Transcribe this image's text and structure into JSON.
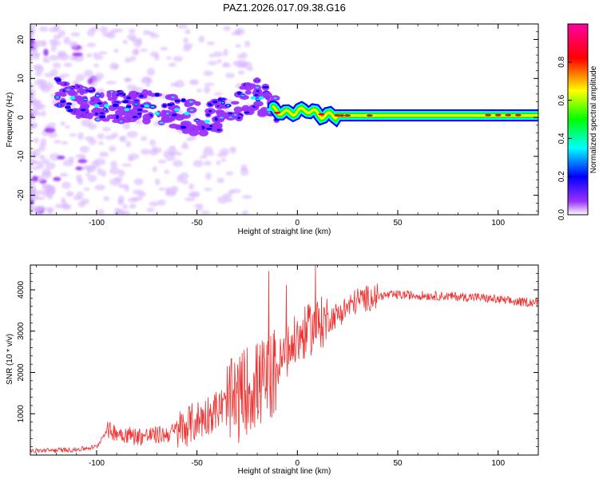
{
  "title": "PAZ1.2026.017.09.38.G16",
  "chart_data": [
    {
      "type": "heatmap",
      "xlabel": "Height of straight line (km)",
      "ylabel": "Frequency (Hz)",
      "xlim": [
        -133,
        120
      ],
      "ylim": [
        -25,
        24
      ],
      "xticks": [
        -100,
        -50,
        0,
        50,
        100
      ],
      "yticks": [
        -20,
        -10,
        0,
        10,
        20
      ],
      "colorbar": {
        "label": "Normalized spectral amplitude",
        "range": [
          0,
          1
        ],
        "ticks": [
          0.0,
          0.2,
          0.4,
          0.6,
          0.8
        ],
        "colors": [
          "#ffffff",
          "#9b30ff",
          "#0000ff",
          "#00ffff",
          "#00ff00",
          "#ffff00",
          "#ff0000",
          "#ff00a0"
        ]
      },
      "ridge": [
        {
          "x": -133,
          "f": 12
        },
        {
          "x": -115,
          "f": 5
        },
        {
          "x": -100,
          "f": 3
        },
        {
          "x": -80,
          "f": 3
        },
        {
          "x": -60,
          "f": 1
        },
        {
          "x": -45,
          "f": -1
        },
        {
          "x": -35,
          "f": 2
        },
        {
          "x": -25,
          "f": 5
        },
        {
          "x": -20,
          "f": 6
        },
        {
          "x": -12,
          "f": 2
        },
        {
          "x": -5,
          "f": 1
        },
        {
          "x": 5,
          "f": 2
        },
        {
          "x": 12,
          "f": 0.5
        },
        {
          "x": 30,
          "f": 0.5
        },
        {
          "x": 120,
          "f": 0.5
        }
      ]
    },
    {
      "type": "line",
      "xlabel": "Height of straight line (km)",
      "ylabel": "SNR (10 * v/v)",
      "xlim": [
        -133,
        120
      ],
      "ylim": [
        0,
        4600
      ],
      "xticks": [
        -100,
        -50,
        0,
        50,
        100
      ],
      "yticks": [
        1000,
        2000,
        3000,
        4000
      ],
      "color": "#ee3333",
      "series": [
        {
          "name": "SNR",
          "x": [
            -133,
            -110,
            -100,
            -95,
            -80,
            -65,
            -55,
            -40,
            -30,
            -25,
            -15,
            -10,
            -5,
            0,
            5,
            10,
            20,
            30,
            40,
            50,
            70,
            90,
            110,
            120
          ],
          "y": [
            100,
            130,
            200,
            600,
            450,
            500,
            700,
            1100,
            1300,
            1600,
            1800,
            2100,
            2500,
            2800,
            3000,
            3150,
            3400,
            3750,
            3850,
            3880,
            3850,
            3820,
            3700,
            3700
          ]
        }
      ]
    }
  ]
}
